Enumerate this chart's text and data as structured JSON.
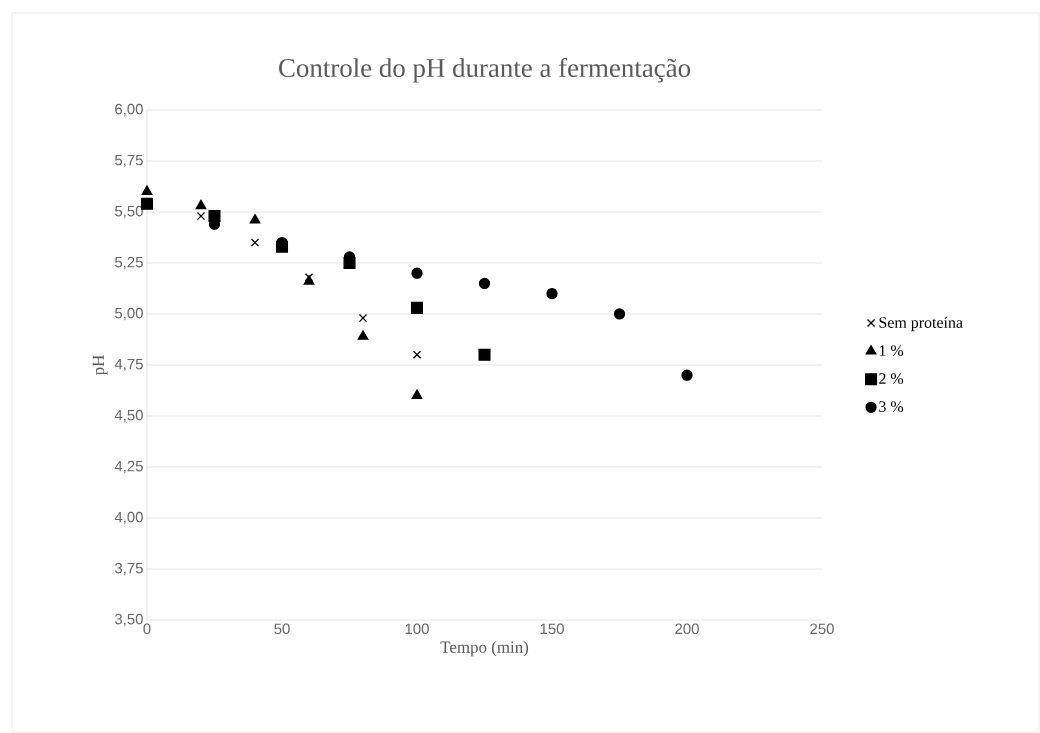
{
  "chart_data": {
    "type": "scatter",
    "title": "Controle do pH durante a fermentação",
    "xlabel": "Tempo (min)",
    "ylabel": "pH",
    "xlim": [
      0,
      250
    ],
    "xticks": [
      0,
      50,
      100,
      150,
      200,
      250
    ],
    "ylim": [
      3.5,
      6.0
    ],
    "yticks": [
      {
        "value": 3.5,
        "label": "3,50"
      },
      {
        "value": 3.75,
        "label": "3,75"
      },
      {
        "value": 4.0,
        "label": "4,00"
      },
      {
        "value": 4.25,
        "label": "4,25"
      },
      {
        "value": 4.5,
        "label": "4,50"
      },
      {
        "value": 4.75,
        "label": "4,75"
      },
      {
        "value": 5.0,
        "label": "5,00"
      },
      {
        "value": 5.25,
        "label": "5,25"
      },
      {
        "value": 5.5,
        "label": "5,50"
      },
      {
        "value": 5.75,
        "label": "5,75"
      },
      {
        "value": 6.0,
        "label": "6,00"
      }
    ],
    "grid": "y",
    "legend": "right",
    "series": [
      {
        "name": "Sem proteína",
        "color": "#000000",
        "marker": "cross",
        "x": [
          20,
          40,
          60,
          80,
          100
        ],
        "values": [
          5.48,
          5.35,
          5.18,
          4.98,
          4.8
        ]
      },
      {
        "name": "1 %",
        "color": "#000000",
        "marker": "triangle",
        "x": [
          0,
          20,
          40,
          60,
          80,
          100
        ],
        "values": [
          5.6,
          5.53,
          5.46,
          5.16,
          4.89,
          4.6
        ]
      },
      {
        "name": "2 %",
        "color": "#000000",
        "marker": "square",
        "x": [
          0,
          25,
          50,
          75,
          100,
          125
        ],
        "values": [
          5.54,
          5.48,
          5.33,
          5.25,
          5.03,
          4.8
        ]
      },
      {
        "name": "3 %",
        "color": "#000000",
        "marker": "circle",
        "x": [
          25,
          50,
          75,
          100,
          125,
          150,
          175,
          200
        ],
        "values": [
          5.44,
          5.35,
          5.28,
          5.2,
          5.15,
          5.1,
          5.0,
          4.7
        ]
      }
    ]
  }
}
